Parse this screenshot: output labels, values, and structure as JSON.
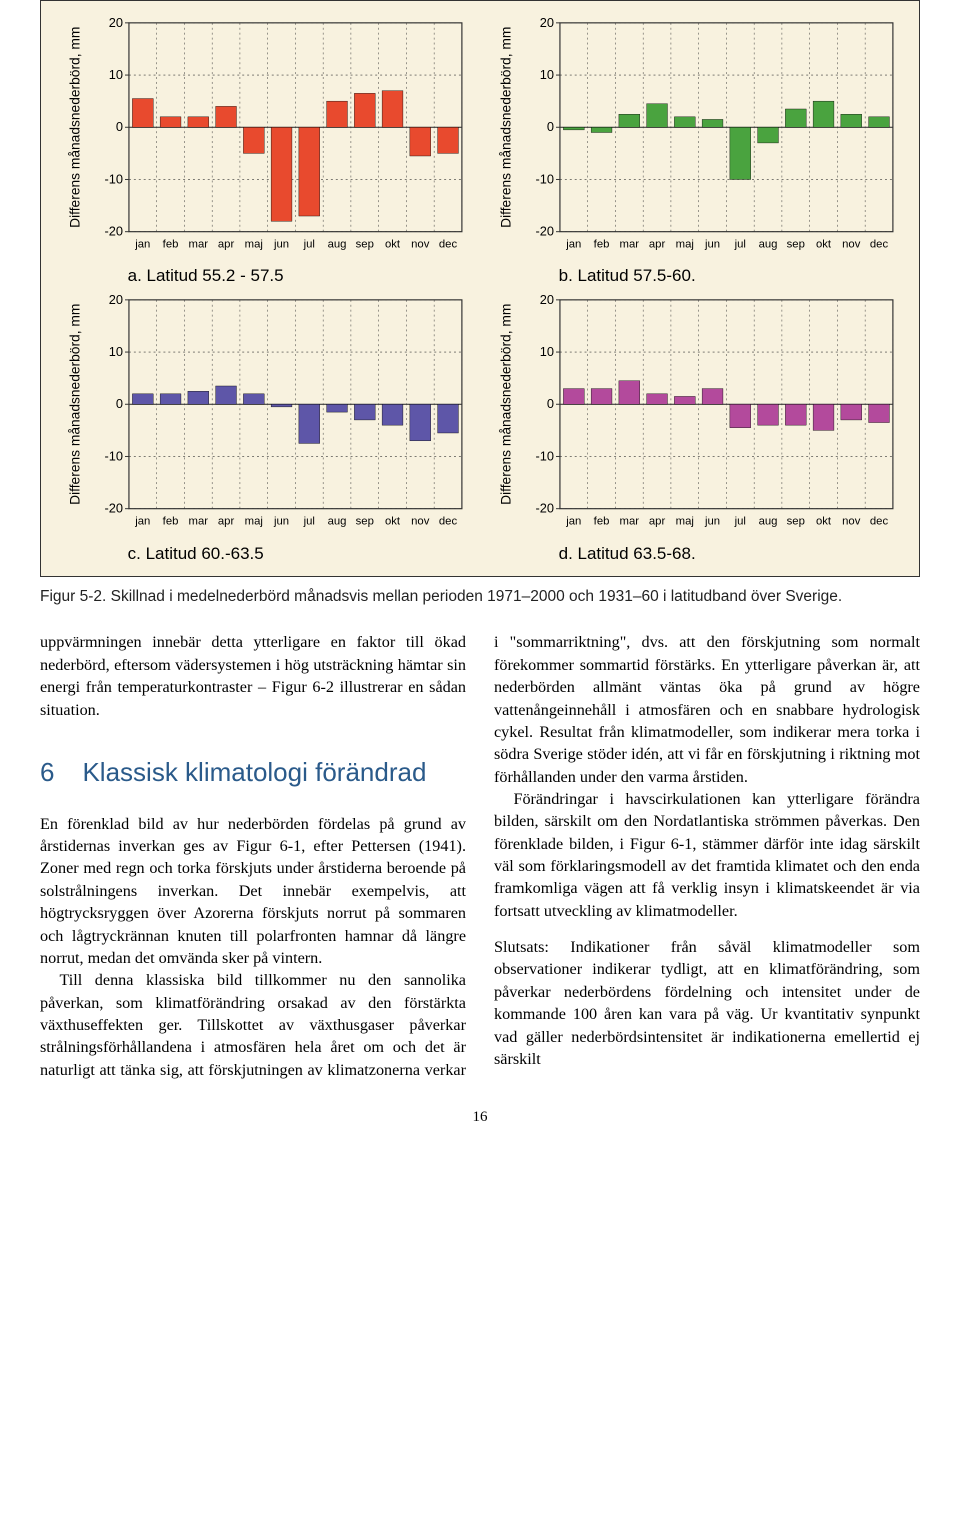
{
  "charts": {
    "y_axis_label": "Differens månadsnederbörd, mm",
    "y_ticks": [
      20,
      10,
      0,
      -10,
      -20
    ],
    "x_labels": [
      "jan",
      "feb",
      "mar",
      "apr",
      "maj",
      "jun",
      "jul",
      "aug",
      "sep",
      "okt",
      "nov",
      "dec"
    ],
    "background_color": "#f8f2df",
    "grid_color": "#333333",
    "axis_fontsize": 12,
    "tick_fontsize": 13,
    "caption_fontsize": 17,
    "bar_width": 0.75,
    "panels": [
      {
        "id": "a",
        "caption": "a. Latitud 55.2 - 57.5",
        "bar_color": "#e84a2e",
        "values": [
          5.5,
          2.0,
          2.0,
          4.0,
          -5.0,
          -18.0,
          -17.0,
          5.0,
          6.5,
          7.0,
          -5.5,
          -5.0
        ]
      },
      {
        "id": "b",
        "caption": "b. Latitud 57.5-60.",
        "bar_color": "#4aa33f",
        "values": [
          -0.5,
          -1.0,
          2.5,
          4.5,
          2.0,
          1.5,
          -10.0,
          -3.0,
          3.5,
          5.0,
          2.5,
          2.0
        ]
      },
      {
        "id": "c",
        "caption": "c. Latitud 60.-63.5",
        "bar_color": "#5e56a8",
        "values": [
          2.0,
          2.0,
          2.5,
          3.5,
          2.0,
          -0.5,
          -7.5,
          -1.5,
          -3.0,
          -4.0,
          -7.0,
          -5.5
        ]
      },
      {
        "id": "d",
        "caption": "d. Latitud 63.5-68.",
        "bar_color": "#b34a9c",
        "values": [
          3.0,
          3.0,
          4.5,
          2.0,
          1.5,
          3.0,
          -4.5,
          -4.0,
          -4.0,
          -5.0,
          -3.0,
          -3.5
        ]
      }
    ]
  },
  "figure_caption": "Figur 5-2. Skillnad i medelnederbörd månadsvis mellan perioden 1971–2000 och 1931–60 i latitudband över Sverige.",
  "section": {
    "number": "6",
    "title": "Klassisk klimatologi förändrad",
    "title_color": "#2a5a8a"
  },
  "paragraphs": {
    "p1": "uppvärmningen innebär detta ytterligare en faktor till ökad nederbörd, eftersom vädersystemen i hög utsträckning hämtar sin energi från temperatur­kontraster – Figur 6-2 illustrerar en sådan situation.",
    "p2": "En förenklad bild av hur nederbörden fördelas på grund av årstidernas inverkan ges av Figur 6-1, efter Pettersen (1941). Zoner med regn och torka förskjuts under årstiderna beroende på solstrålningens in­verkan. Det innebär exempelvis, att högtrycksryggen över Azorerna förskjuts norrut på sommaren och lågtryckrännan knuten till polarfronten hamnar då längre norrut, medan det omvända sker på vintern.",
    "p3a": "Till denna klassiska bild tillkommer nu den sanno­lika påverkan, som klimatförändring orsakad av den förstärkta växthuseffekten ger. Tillskottet av växthus­",
    "p3b": "gaser påverkar strålningsförhållandena i atmosfären hela året om och det är naturligt att tänka sig, att förskjutningen av klimatzonerna verkar i \"sommar­riktning\", dvs. att den förskjutning som normalt förekommer sommartid förstärks. En ytterligare påverkan är, att nederbörden allmänt väntas öka på grund av högre vattenångeinnehåll i atmosfären och en snabbare hydrologisk cykel. Resultat från klimat­modeller, som indikerar mera torka i södra Sverige stöder idén, att vi får en förskjutning i riktning mot förhållanden under den varma årstiden.",
    "p4": "Förändringar i havscirkulationen kan ytterligare förändra bilden, särskilt om den Nordatlantiska strömmen påverkas. Den förenklade bilden, i Figur 6-1, stämmer därför inte idag särskilt väl som för­klaringsmodell av det framtida klimatet och den enda framkomliga vägen att få verklig insyn i klimat­skeendet är via fortsatt utveckling av klimatmodeller.",
    "p5": "Slutsats: Indikationer från såväl klimatmodeller som observationer indikerar tydligt, att en klimatförändr­ing, som påverkar nederbördens fördelning och in­tensitet under de kommande 100 åren kan vara på väg. Ur kvantitativ synpunkt vad gäller nederbörds­intensitet är indikationerna emellertid ej särskilt"
  },
  "page_number": "16"
}
